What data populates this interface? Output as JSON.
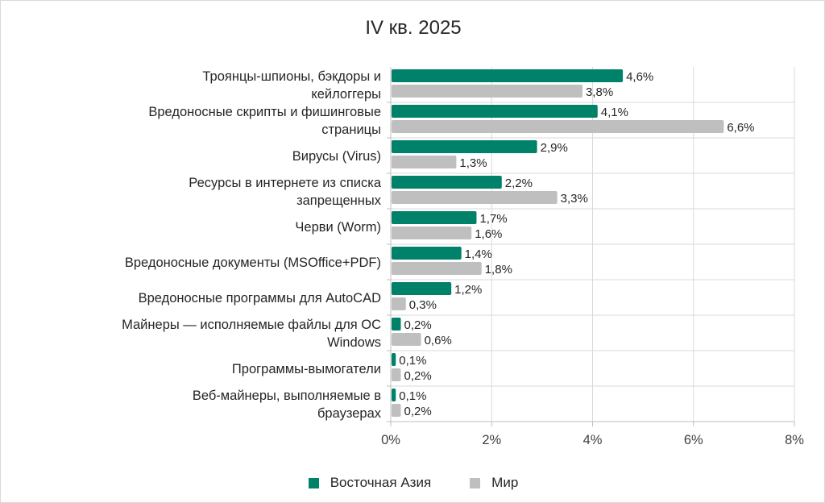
{
  "chart_data": {
    "type": "bar",
    "orientation": "horizontal",
    "title": "IV кв. 2025",
    "categories": [
      [
        "Троянцы-шпионы, бэкдоры и",
        "кейлоггеры"
      ],
      [
        "Вредоносные скрипты и фишинговые",
        "страницы"
      ],
      [
        "Вирусы (Virus)"
      ],
      [
        "Ресурсы в интернете из списка",
        "запрещенных"
      ],
      [
        "Черви (Worm)"
      ],
      [
        "Вредоносные документы (MSOffice+PDF)"
      ],
      [
        "Вредоносные программы для AutoCAD"
      ],
      [
        "Майнеры — исполняемые файлы для ОС",
        "Windows"
      ],
      [
        "Программы-вымогатели"
      ],
      [
        "Веб-майнеры, выполняемые в",
        "браузерах"
      ]
    ],
    "series": [
      {
        "name": "Восточная Азия",
        "color": "#00816a",
        "values": [
          4.6,
          4.1,
          2.9,
          2.2,
          1.7,
          1.4,
          1.2,
          0.2,
          0.1,
          0.1
        ],
        "labels": [
          "4,6%",
          "4,1%",
          "2,9%",
          "2,2%",
          "1,7%",
          "1,4%",
          "1,2%",
          "0,2%",
          "0,1%",
          "0,1%"
        ]
      },
      {
        "name": "Мир",
        "color": "#bfbfbf",
        "values": [
          3.8,
          6.6,
          1.3,
          3.3,
          1.6,
          1.8,
          0.3,
          0.6,
          0.2,
          0.2
        ],
        "labels": [
          "3,8%",
          "6,6%",
          "1,3%",
          "3,3%",
          "1,6%",
          "1,8%",
          "0,3%",
          "0,6%",
          "0,2%",
          "0,2%"
        ]
      }
    ],
    "xlim": [
      0,
      8
    ],
    "xticks": [
      0,
      2,
      4,
      6,
      8
    ],
    "xtick_labels": [
      "0%",
      "2%",
      "4%",
      "6%",
      "8%"
    ],
    "grid": true,
    "legend_position": "bottom"
  }
}
